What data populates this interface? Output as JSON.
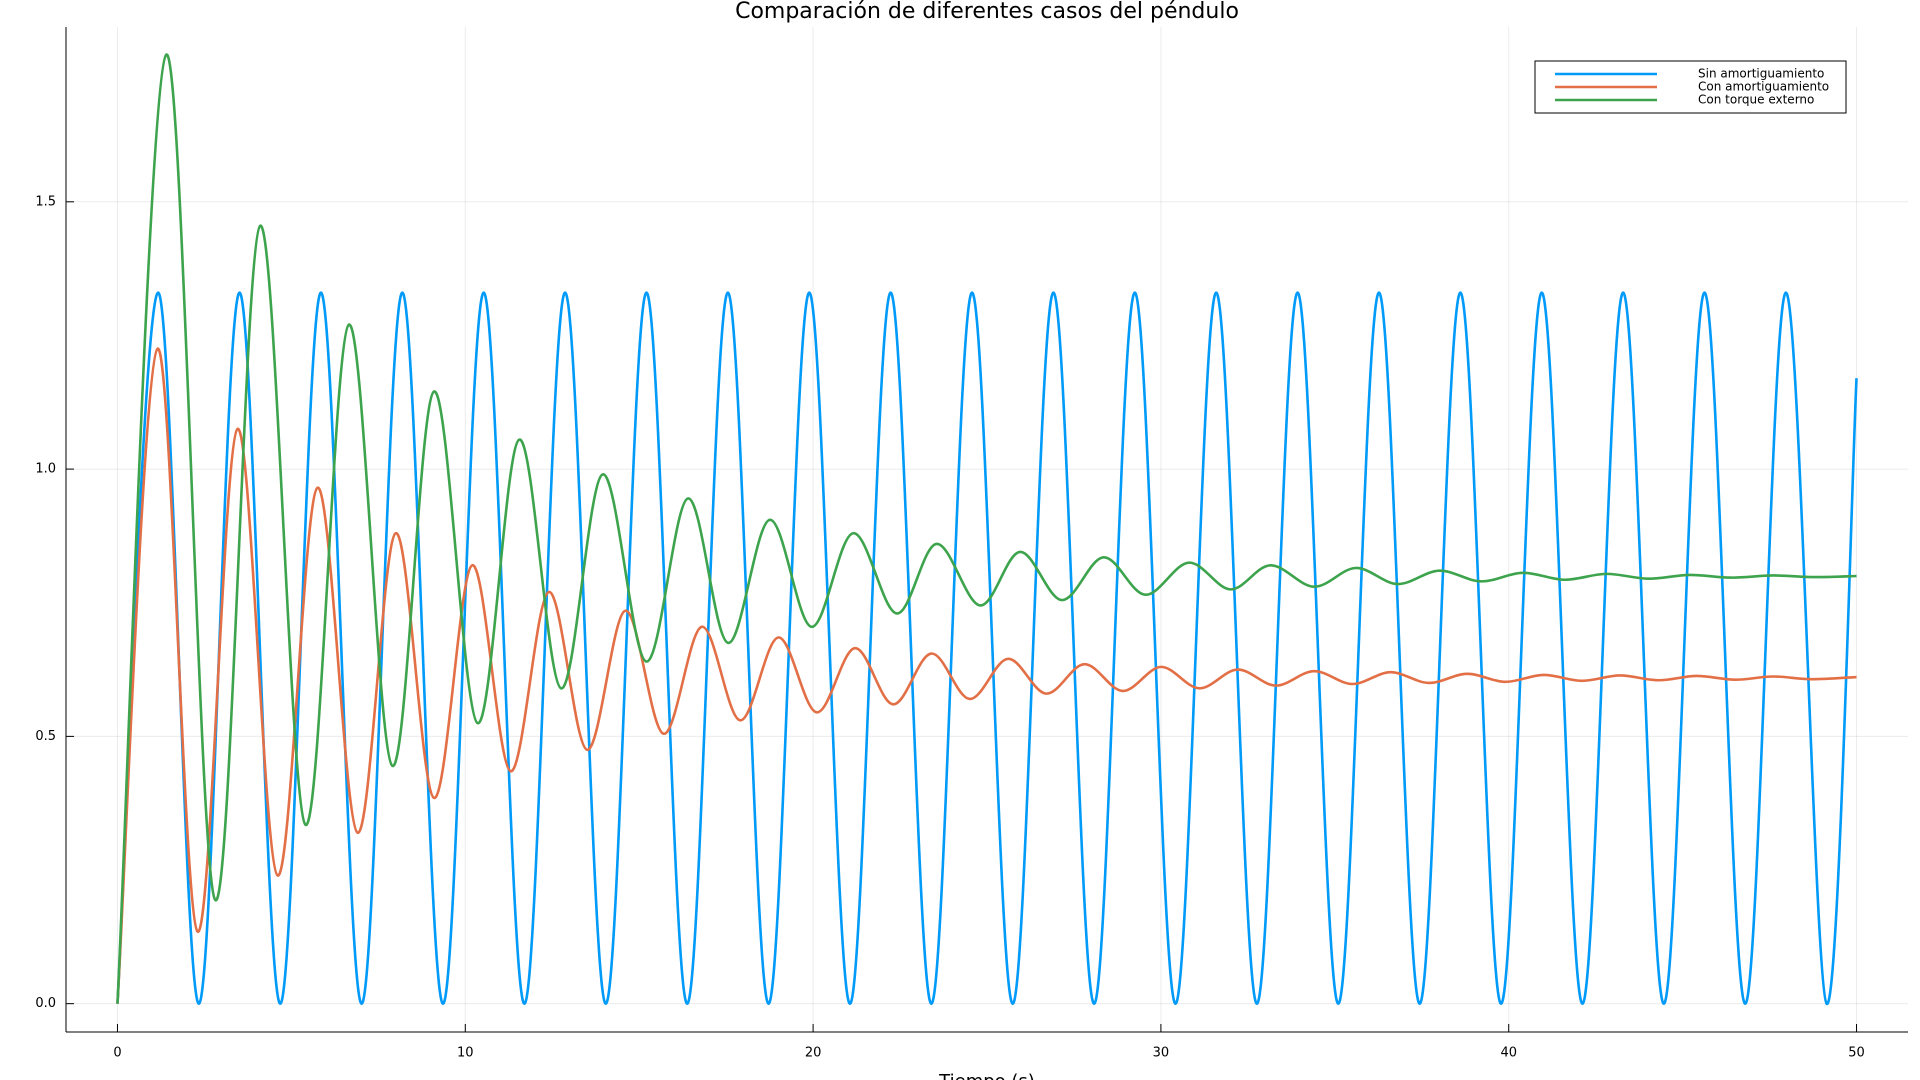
{
  "chart_data": {
    "type": "line",
    "title": "Comparación de diferentes casos del péndulo",
    "xlabel": "Tiempo (s)",
    "xlim": [
      -1.48,
      51.48
    ],
    "ylim": [
      -0.053,
      1.827
    ],
    "xticks": [
      0,
      10,
      20,
      30,
      40,
      50
    ],
    "yticks": [
      {
        "value": 0,
        "label": "0.0"
      },
      0.5,
      {
        "value": 1,
        "label": "1.0"
      },
      1.5
    ],
    "grid": true,
    "legend": "upper right",
    "series": [
      {
        "name": "Sin amortiguamiento",
        "color": "#009af9",
        "x": [
          0,
          1.17,
          2.34,
          3.51,
          4.68,
          5.85,
          7.02,
          8.19,
          9.36,
          10.53,
          11.7,
          12.87,
          14.04,
          15.21,
          16.38,
          17.55,
          18.72,
          19.89,
          21.06,
          22.23,
          23.4,
          24.57,
          25.74,
          26.91,
          28.08,
          29.25,
          30.42,
          31.59,
          32.76,
          33.93,
          35.1,
          36.27,
          37.44,
          38.61,
          39.78,
          40.95,
          42.12,
          43.29,
          44.46,
          45.63,
          46.8,
          47.97,
          49.14,
          50
        ],
        "values": [
          0,
          1.33,
          0,
          1.33,
          0,
          1.33,
          0,
          1.33,
          0,
          1.33,
          0,
          1.33,
          0,
          1.33,
          0,
          1.33,
          0,
          1.33,
          0,
          1.33,
          0,
          1.33,
          0,
          1.33,
          0,
          1.33,
          0,
          1.33,
          0,
          1.33,
          0,
          1.33,
          0,
          1.33,
          0,
          1.33,
          0,
          1.33,
          0,
          1.33,
          0,
          1.33,
          0,
          1.17
        ]
      },
      {
        "name": "Con amortiguamiento",
        "color": "#e26f46",
        "x": [
          0,
          1.15,
          2.3,
          3.45,
          4.6,
          5.75,
          6.9,
          8.0,
          9.1,
          10.2,
          11.3,
          12.4,
          13.5,
          14.6,
          15.7,
          16.8,
          17.9,
          19.0,
          20.1,
          21.2,
          22.3,
          23.4,
          24.5,
          25.6,
          26.7,
          27.8,
          28.9,
          30.0,
          31.1,
          32.2,
          33.3,
          34.4,
          35.5,
          36.6,
          37.7,
          38.8,
          39.9,
          41.0,
          42.1,
          43.2,
          44.3,
          45.4,
          46.5,
          47.6,
          48.7,
          50
        ],
        "values": [
          0,
          1.225,
          0.135,
          1.075,
          0.24,
          0.965,
          0.32,
          0.88,
          0.385,
          0.82,
          0.435,
          0.77,
          0.475,
          0.735,
          0.505,
          0.705,
          0.53,
          0.685,
          0.545,
          0.665,
          0.56,
          0.655,
          0.57,
          0.645,
          0.58,
          0.635,
          0.585,
          0.63,
          0.59,
          0.625,
          0.595,
          0.622,
          0.598,
          0.62,
          0.6,
          0.617,
          0.602,
          0.615,
          0.604,
          0.614,
          0.605,
          0.613,
          0.606,
          0.612,
          0.607,
          0.611
        ]
      },
      {
        "name": "Con torque externo",
        "color": "#3da44d",
        "x": [
          0,
          1.4,
          2.8,
          4.1,
          5.4,
          6.65,
          7.9,
          9.1,
          10.35,
          11.55,
          12.75,
          13.95,
          15.2,
          16.4,
          17.55,
          18.75,
          19.95,
          21.15,
          22.4,
          23.55,
          24.8,
          25.95,
          27.15,
          28.35,
          29.55,
          30.8,
          32.0,
          33.15,
          34.4,
          35.6,
          36.8,
          38.0,
          39.2,
          40.4,
          41.6,
          42.8,
          44.0,
          45.2,
          46.4,
          47.6,
          48.8,
          50
        ],
        "values": [
          0,
          1.775,
          0.195,
          1.455,
          0.335,
          1.27,
          0.445,
          1.145,
          0.525,
          1.055,
          0.59,
          0.99,
          0.64,
          0.945,
          0.675,
          0.905,
          0.705,
          0.88,
          0.73,
          0.86,
          0.745,
          0.845,
          0.755,
          0.835,
          0.765,
          0.825,
          0.775,
          0.82,
          0.78,
          0.815,
          0.785,
          0.81,
          0.79,
          0.806,
          0.793,
          0.804,
          0.795,
          0.802,
          0.797,
          0.801,
          0.798,
          0.8
        ]
      }
    ]
  }
}
